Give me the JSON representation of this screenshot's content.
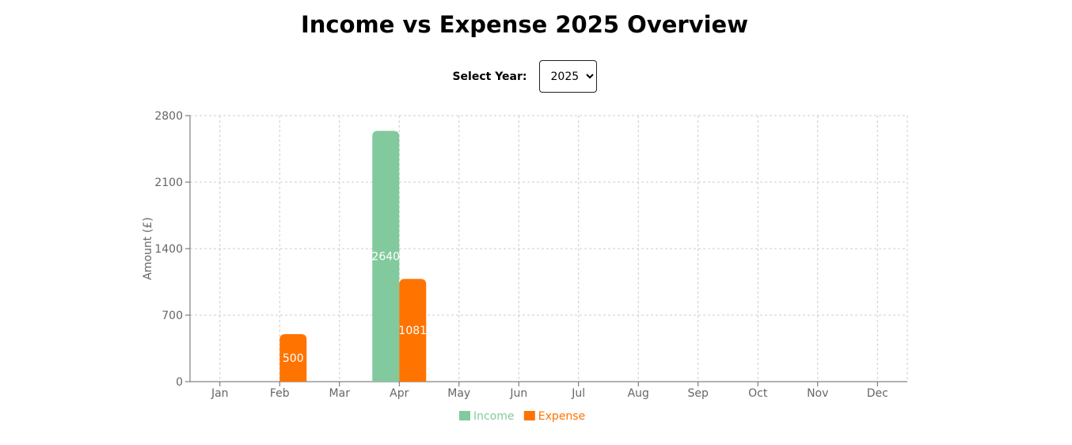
{
  "header": {
    "title": "Income vs Expense 2025 Overview"
  },
  "year_selector": {
    "label": "Select Year:",
    "selected": "2025",
    "options": [
      "2025"
    ]
  },
  "colors": {
    "income": "#82ca9d",
    "expense": "#ff7300"
  },
  "chart_data": {
    "type": "bar",
    "title": "",
    "xlabel": "",
    "ylabel": "Amount (£)",
    "ylim": [
      0,
      2800
    ],
    "yticks": [
      0,
      700,
      1400,
      2100,
      2800
    ],
    "grid": true,
    "legend_position": "bottom-center",
    "categories": [
      "Jan",
      "Feb",
      "Mar",
      "Apr",
      "May",
      "Jun",
      "Jul",
      "Aug",
      "Sep",
      "Oct",
      "Nov",
      "Dec"
    ],
    "series": [
      {
        "name": "Income",
        "color": "#82ca9d",
        "values": [
          0,
          0,
          0,
          2640,
          0,
          0,
          0,
          0,
          0,
          0,
          0,
          0
        ]
      },
      {
        "name": "Expense",
        "color": "#ff7300",
        "values": [
          0,
          500,
          0,
          1081,
          0,
          0,
          0,
          0,
          0,
          0,
          0,
          0
        ]
      }
    ]
  }
}
